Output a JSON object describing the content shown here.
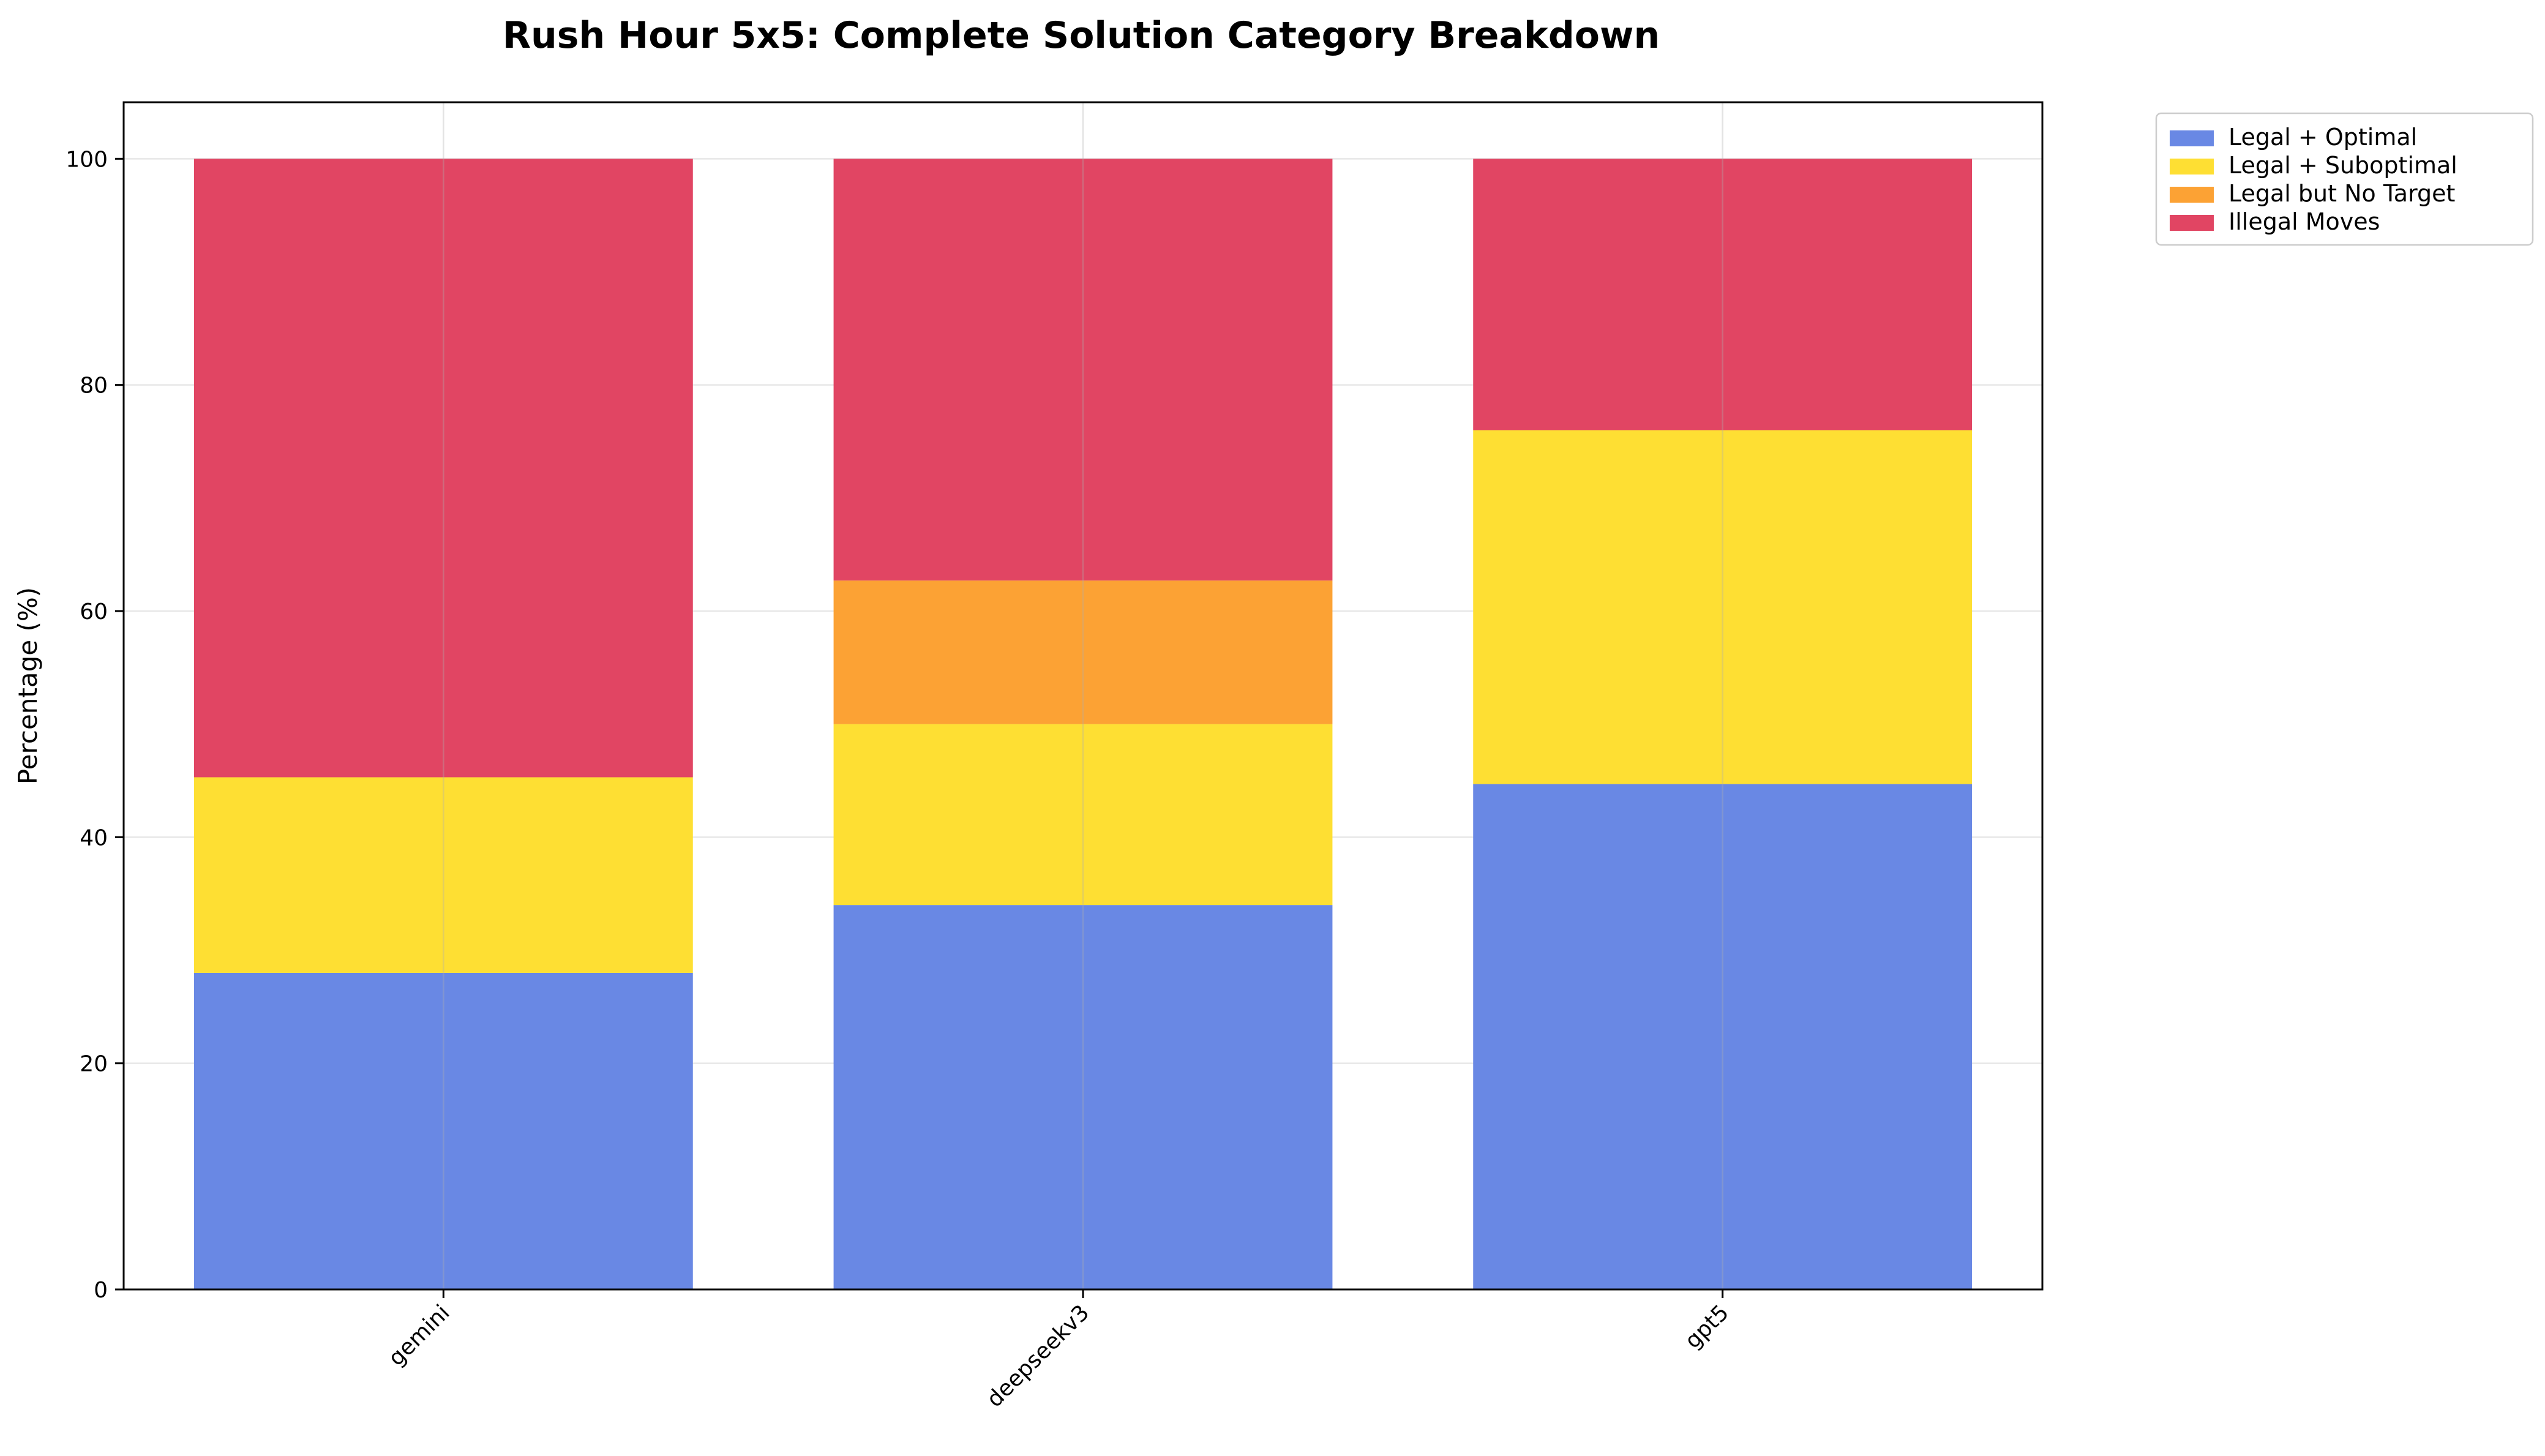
{
  "chart_data": {
    "type": "bar",
    "stacked": true,
    "title": "Rush Hour 5x5: Complete Solution Category Breakdown",
    "xlabel": "",
    "ylabel": "Percentage (%)",
    "ylim": [
      0,
      105
    ],
    "yticks": [
      0,
      20,
      40,
      60,
      80,
      100
    ],
    "grid": true,
    "legend_position": "outside-top-right",
    "categories": [
      "gemini",
      "deepseekv3",
      "gpt5"
    ],
    "series": [
      {
        "name": "Legal + Optimal",
        "color": "#6988e4",
        "values": [
          28.0,
          34.0,
          44.7
        ]
      },
      {
        "name": "Legal + Suboptimal",
        "color": "#fedf33",
        "values": [
          17.3,
          16.0,
          31.3
        ]
      },
      {
        "name": "Legal but No Target",
        "color": "#fca234",
        "values": [
          0.0,
          12.7,
          0.0
        ]
      },
      {
        "name": "Illegal Moves",
        "color": "#e14563",
        "values": [
          54.7,
          37.3,
          24.0
        ]
      }
    ]
  }
}
